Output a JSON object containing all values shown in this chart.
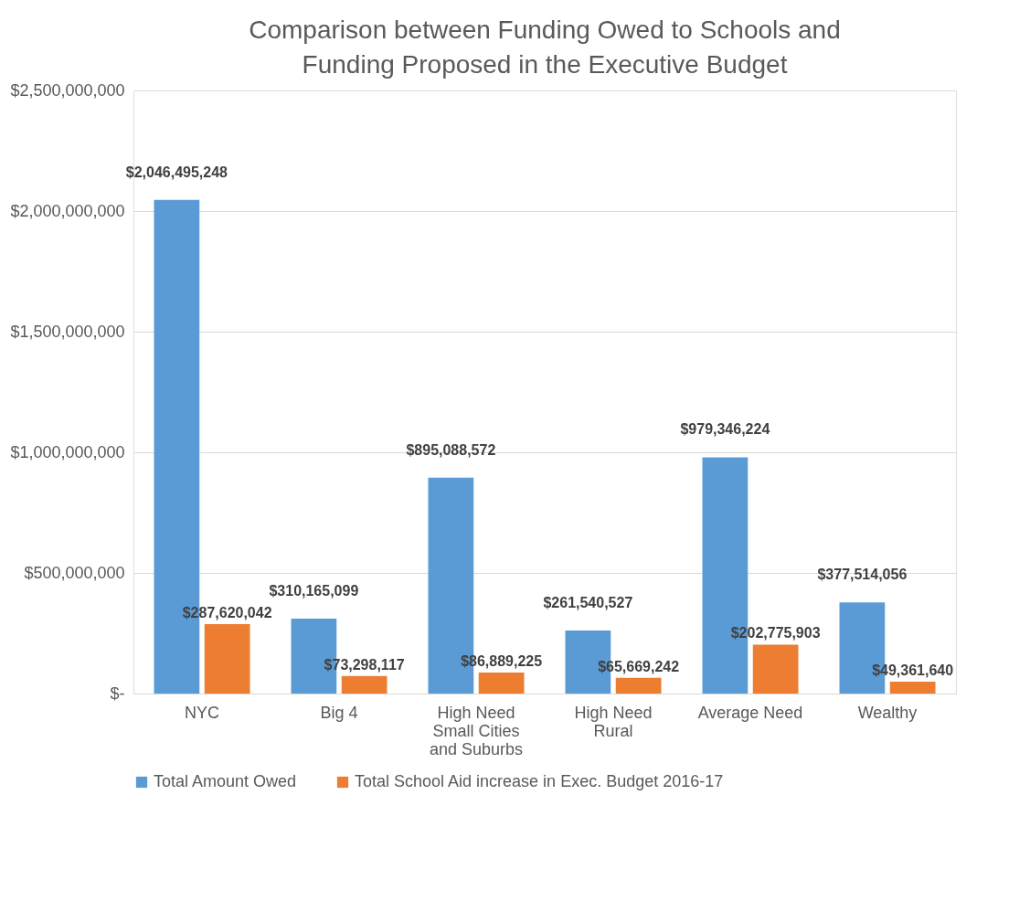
{
  "chart_data": {
    "type": "bar",
    "title": "Comparison between Funding Owed to Schools and Funding Proposed in the Executive Budget",
    "categories": [
      "NYC",
      "Big 4",
      "High Need Small Cities and Suburbs",
      "High Need Rural",
      "Average Need",
      "Wealthy"
    ],
    "series": [
      {
        "name": "Total Amount Owed",
        "color": "#5b9bd5",
        "values": [
          2046495248,
          310165099,
          895088572,
          261540527,
          979346224,
          377514056
        ],
        "value_labels": [
          "$2,046,495,248",
          "$310,165,099",
          "$895,088,572",
          "$261,540,527",
          "$979,346,224",
          "$377,514,056"
        ]
      },
      {
        "name": "Total School Aid increase in Exec. Budget 2016-17",
        "color": "#ed7d31",
        "values": [
          287620042,
          73298117,
          86889225,
          65669242,
          202775903,
          49361640
        ],
        "value_labels": [
          "$287,620,042",
          "$73,298,117",
          "$86,889,225",
          "$65,669,242",
          "$202,775,903",
          "$49,361,640"
        ]
      }
    ],
    "ylim": [
      0,
      2500000000
    ],
    "yticks": [
      {
        "value": 0,
        "label": "$-"
      },
      {
        "value": 500000000,
        "label": "$500,000,000"
      },
      {
        "value": 1000000000,
        "label": "$1,000,000,000"
      },
      {
        "value": 1500000000,
        "label": "$1,500,000,000"
      },
      {
        "value": 2000000000,
        "label": "$2,000,000,000"
      },
      {
        "value": 2500000000,
        "label": "$2,500,000,000"
      }
    ],
    "grid": "y",
    "legend": "bottom"
  }
}
